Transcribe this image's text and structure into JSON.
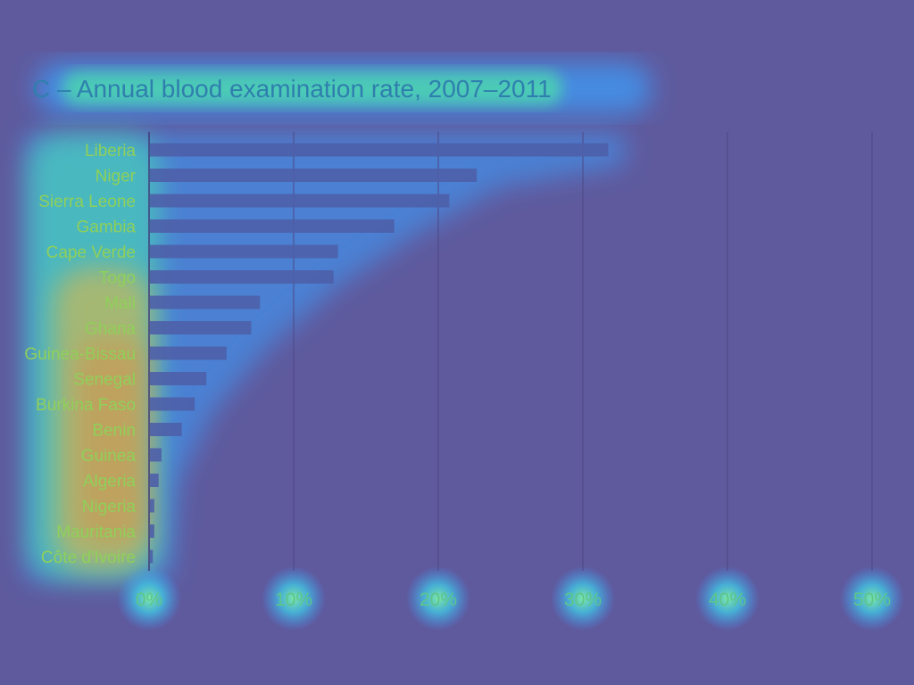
{
  "chart_data": {
    "type": "bar",
    "orientation": "horizontal",
    "title": "C – Annual blood examination rate, 2007–2011",
    "xlabel": "",
    "ylabel": "",
    "categories": [
      "Liberia",
      "Niger",
      "Sierra Leone",
      "Gambia",
      "Cape Verde",
      "Togo",
      "Mali",
      "Ghana",
      "Guinea-Bissau",
      "Senegal",
      "Burkina Faso",
      "Benin",
      "Guinea",
      "Algeria",
      "Nigeria",
      "Mauritania",
      "Côte d'Ivoire"
    ],
    "values": [
      31.7,
      22.6,
      20.7,
      16.9,
      13.0,
      12.7,
      7.6,
      7.0,
      5.3,
      3.9,
      3.1,
      2.2,
      0.8,
      0.6,
      0.3,
      0.3,
      0.2
    ],
    "xlim": [
      0,
      50
    ],
    "xticks": [
      0,
      10,
      20,
      30,
      40,
      50
    ],
    "xtick_labels": [
      "0%",
      "10%",
      "20%",
      "30%",
      "40%",
      "50%"
    ],
    "grid": "vertical",
    "legend": "none"
  },
  "colors": {
    "background": "#5f5a9e",
    "bar": "#4e5fa8",
    "grid": "#4c4784",
    "title_text": "#2f7fae",
    "label_text": "#8fd05a",
    "tick_text": "#5fc58a",
    "glow_outer": "#3aa0ff",
    "glow_inner": "#48e6b0",
    "glow_hot": "#f0b838"
  }
}
